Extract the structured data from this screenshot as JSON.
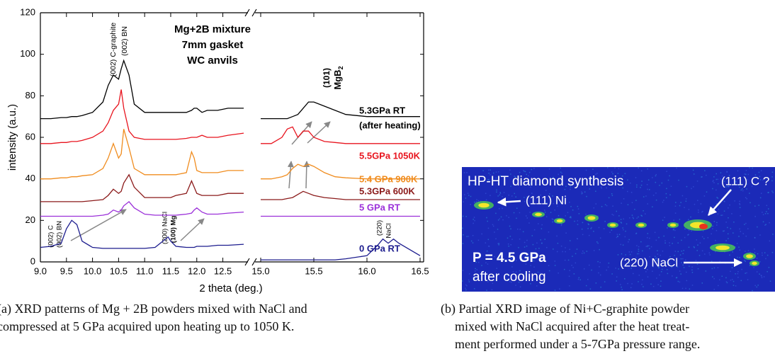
{
  "chart_data": {
    "type": "line",
    "xlabel": "2 theta (deg.)",
    "ylabel": "intensity (a.u.)",
    "ylim": [
      0,
      120
    ],
    "yticks": [
      0,
      20,
      40,
      60,
      80,
      100,
      120
    ],
    "box_text": [
      "Mg+2B mixture",
      "7mm gasket",
      "WC anvils"
    ],
    "annotations": [
      "(002) C-graphite",
      "(002) BN",
      "(101)",
      {
        "text": "MgB",
        "sub": "2"
      },
      "(200) NaCl",
      "(100) Mg",
      "(002) C",
      "(002) BN",
      "(220)",
      "NaCl",
      "(after heating)"
    ],
    "panels": [
      {
        "xlim": [
          9.0,
          12.9
        ],
        "xticks": [
          {
            "value": 9.0,
            "label": "9.0"
          },
          9.5,
          {
            "value": 10.0,
            "label": "10.0"
          },
          10.5,
          {
            "value": 11.0,
            "label": "11.0"
          },
          11.5,
          {
            "value": 12.0,
            "label": "12.0"
          },
          12.5
        ],
        "x": [
          9.0,
          9.2,
          9.4,
          9.5,
          9.6,
          9.7,
          9.8,
          10.0,
          10.2,
          10.3,
          10.4,
          10.5,
          10.55,
          10.6,
          10.7,
          10.8,
          11.0,
          11.2,
          11.4,
          11.45,
          11.5,
          11.6,
          11.8,
          11.9,
          11.95,
          12.0,
          12.1,
          12.2,
          12.4,
          12.6,
          12.9
        ]
      },
      {
        "xlim": [
          15.0,
          16.5
        ],
        "xticks": [
          {
            "value": 15.0,
            "label": "15.0"
          },
          15.5,
          {
            "value": 16.0,
            "label": "16.0"
          },
          16.5
        ],
        "x": [
          15.0,
          15.1,
          15.2,
          15.25,
          15.3,
          15.35,
          15.4,
          15.45,
          15.5,
          15.6,
          15.7,
          15.8,
          16.0,
          16.1,
          16.15,
          16.2,
          16.25,
          16.3,
          16.5
        ]
      }
    ],
    "series": [
      {
        "name": "0 GPa RT",
        "color": "#1c1c8e",
        "values": [
          [
            7,
            7.5,
            9,
            16,
            20,
            18,
            10,
            7,
            6.5,
            6.5,
            6.5,
            6.5,
            6.5,
            6.5,
            6.5,
            6.5,
            6.5,
            7,
            11,
            12,
            10,
            7.5,
            7,
            7,
            7,
            7.5,
            7.5,
            7.5,
            8,
            8,
            8.5
          ],
          [
            1,
            1,
            1,
            1,
            1,
            1,
            1,
            1,
            1,
            1,
            1,
            1.5,
            3,
            8,
            11,
            9,
            11,
            9,
            3
          ]
        ]
      },
      {
        "name": "5 GPa RT",
        "color": "#9b30d9",
        "values": [
          [
            22,
            22,
            22,
            22,
            22,
            22,
            22,
            22,
            22.5,
            23,
            25,
            24,
            25,
            27,
            29,
            26,
            23,
            22.5,
            22.5,
            22.5,
            22.5,
            22.5,
            23,
            23.5,
            25,
            26,
            24,
            23,
            23,
            23.5,
            24
          ],
          [
            22,
            22,
            22,
            22,
            22,
            22,
            22,
            22,
            22,
            22,
            22,
            22,
            22,
            22,
            22,
            22,
            22,
            22,
            22
          ]
        ]
      },
      {
        "name": "5.3GPa 600K",
        "color": "#8b1a1a",
        "values": [
          [
            29,
            29,
            29,
            29,
            29,
            29,
            29,
            29.5,
            30,
            32,
            35,
            33,
            34,
            38,
            42,
            36,
            31,
            31,
            31,
            31,
            31,
            32,
            33,
            39,
            36,
            33,
            32,
            32,
            32,
            33,
            33
          ],
          [
            30,
            30,
            30,
            30.5,
            31,
            32.5,
            34,
            33,
            32,
            31,
            30.5,
            30,
            30,
            30,
            30,
            30,
            30,
            30,
            30
          ]
        ]
      },
      {
        "name": "5.4 GPa 900K",
        "color": "#f08c1e",
        "values": [
          [
            40,
            40,
            40.5,
            40.5,
            41,
            41,
            41.5,
            42,
            45,
            50,
            57,
            50,
            52,
            64,
            55,
            45,
            42,
            42,
            42,
            42,
            42,
            42,
            43,
            53,
            50,
            44,
            43,
            43,
            43,
            44,
            44
          ],
          [
            40,
            40,
            41,
            42,
            45,
            47,
            46,
            47,
            46,
            43,
            41,
            40.5,
            40,
            40,
            40,
            40,
            40,
            40,
            40
          ]
        ]
      },
      {
        "name": "5.5GPa 1050K",
        "color": "#e8141e",
        "values": [
          [
            57,
            57,
            57.5,
            57.5,
            58,
            58,
            58.5,
            60,
            63,
            67,
            73,
            76,
            83,
            74,
            63,
            60,
            59,
            59,
            59,
            59,
            59,
            59,
            59.5,
            60,
            60,
            60,
            61,
            60,
            60,
            61,
            62
          ],
          [
            57,
            57,
            60,
            64,
            65,
            60,
            63,
            63,
            60,
            58,
            57.5,
            57,
            57,
            57,
            57,
            57,
            57,
            57,
            57
          ]
        ]
      },
      {
        "name": "5.3GPa RT",
        "color": "#000000",
        "values": [
          [
            69,
            69,
            69.5,
            69.5,
            70,
            70,
            70.5,
            72,
            77,
            85,
            90,
            88,
            93,
            97,
            90,
            76,
            72,
            72,
            72,
            72,
            72,
            72,
            72,
            73,
            74,
            74,
            72,
            73,
            73,
            74,
            74
          ],
          [
            69,
            69,
            69,
            69,
            70,
            71,
            74,
            77,
            77,
            75,
            73,
            71,
            70,
            70,
            70,
            70,
            70,
            70,
            70
          ]
        ]
      }
    ]
  },
  "image_b": {
    "title": "HP-HT diamond synthesis",
    "labels": [
      "(111) Ni",
      "(111) C ?",
      "(220) NaCl"
    ],
    "pressure": "P = 4.5 GPa",
    "condition": "after cooling"
  },
  "captions": [
    {
      "lines": [
        "(a) XRD patterns of Mg + 2B powders mixed with NaCl and",
        "compressed at 5 GPa acquired upon heating up to 1050 K."
      ]
    },
    {
      "lines": [
        "(b) Partial XRD image of Ni+C-graphite powder",
        "mixed with NaCl acquired after the heat treat-",
        "ment performed under a 5-7GPa pressure range."
      ]
    }
  ]
}
